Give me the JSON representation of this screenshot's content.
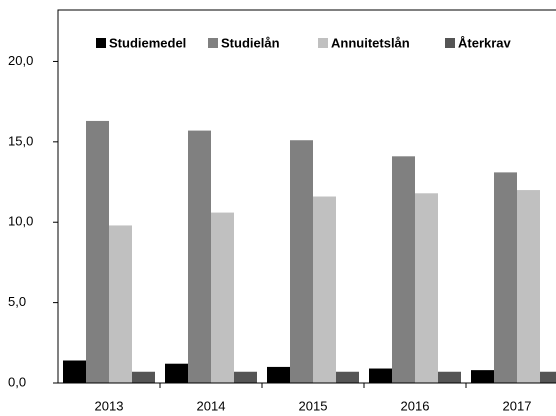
{
  "chart_data": {
    "type": "bar",
    "categories": [
      "2013",
      "2014",
      "2015",
      "2016",
      "2017"
    ],
    "series": [
      {
        "name": "Studiemedel",
        "color": "#000000",
        "values": [
          1.4,
          1.2,
          1.0,
          0.9,
          0.8
        ]
      },
      {
        "name": "Studielån",
        "color": "#808080",
        "values": [
          16.3,
          15.7,
          15.1,
          14.1,
          13.1
        ]
      },
      {
        "name": "Annuitetslån",
        "color": "#c0c0c0",
        "values": [
          9.8,
          10.6,
          11.6,
          11.8,
          12.0
        ]
      },
      {
        "name": "Återkrav",
        "color": "#555555",
        "values": [
          0.7,
          0.7,
          0.7,
          0.7,
          0.7
        ]
      }
    ],
    "ylim": [
      0,
      23.2
    ],
    "yticks": [
      {
        "value": 0,
        "label": "0,0"
      },
      {
        "value": 5,
        "label": "5,0"
      },
      {
        "value": 10,
        "label": "10,0"
      },
      {
        "value": 15,
        "label": "15,0"
      },
      {
        "value": 20,
        "label": "20,0"
      }
    ],
    "legend": "top"
  }
}
